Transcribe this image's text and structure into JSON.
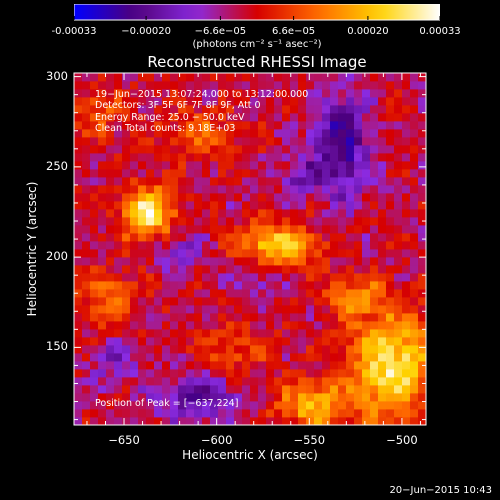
{
  "chart_data": {
    "type": "heatmap",
    "title": "Reconstructed RHESSI Image",
    "xlabel": "Heliocentric X (arcsec)",
    "ylabel": "Heliocentric Y (arcsec)",
    "xlim": [
      -677,
      -487
    ],
    "ylim": [
      107,
      302
    ],
    "xticks": [
      -650,
      -600,
      -550,
      -500
    ],
    "xtick_labels": [
      "−650",
      "−600",
      "−550",
      "−500"
    ],
    "yticks": [
      150,
      200,
      250,
      300
    ],
    "ytick_labels": [
      "150",
      "200",
      "250",
      "300"
    ],
    "colorbar": {
      "range": [
        -0.00033,
        0.00033
      ],
      "ticks": [
        "-0.00033",
        "−0.00020",
        "−6.6e−05",
        "6.6e−05",
        "0.00020",
        "0.00033"
      ],
      "tick_values": [
        -0.00033,
        -0.0002,
        -6.6e-05,
        6.6e-05,
        0.0002,
        0.00033
      ],
      "units_text": "(photons cm⁻² s⁻¹ asec⁻²)",
      "colormap": [
        "#0000ff",
        "#500078",
        "#8a2be2",
        "#d60000",
        "#ff6a00",
        "#ffd200",
        "#ffffff"
      ]
    },
    "info_lines": [
      "19−Jun−2015 13:07:24.000 to 13:12:00.000",
      "Detectors: 3F 5F 6F 7F 8F 9F, Att 0",
      "Energy Range: 25.0 − 50.0 keV",
      "Clean     Total counts: 9.18E+03"
    ],
    "peak_text": "Position of Peak = [−637,224]",
    "peak_position": [
      -637,
      224
    ],
    "sources": [
      {
        "x": -637,
        "y": 224,
        "sx": 10,
        "sy": 10,
        "amp": 0.00033
      },
      {
        "x": -568,
        "y": 207,
        "sx": 16,
        "sy": 8,
        "amp": 0.00026
      },
      {
        "x": -505,
        "y": 140,
        "sx": 16,
        "sy": 20,
        "amp": 0.0003
      },
      {
        "x": -548,
        "y": 118,
        "sx": 14,
        "sy": 9,
        "amp": 0.00022
      },
      {
        "x": -525,
        "y": 178,
        "sx": 12,
        "sy": 8,
        "amp": 0.00016
      },
      {
        "x": -658,
        "y": 176,
        "sx": 12,
        "sy": 12,
        "amp": 0.00013
      },
      {
        "x": -610,
        "y": 268,
        "sx": 14,
        "sy": 10,
        "amp": 0.00012
      },
      {
        "x": -590,
        "y": 150,
        "sx": 14,
        "sy": 10,
        "amp": 0.0001
      },
      {
        "x": -665,
        "y": 280,
        "sx": 10,
        "sy": 10,
        "amp": 0.00011
      },
      {
        "x": -533,
        "y": 262,
        "sx": 10,
        "sy": 20,
        "amp": -0.00022
      },
      {
        "x": -555,
        "y": 245,
        "sx": 8,
        "sy": 8,
        "amp": -0.00012
      },
      {
        "x": -620,
        "y": 205,
        "sx": 10,
        "sy": 10,
        "amp": -0.0001
      },
      {
        "x": -610,
        "y": 122,
        "sx": 16,
        "sy": 10,
        "amp": -0.00016
      },
      {
        "x": -655,
        "y": 145,
        "sx": 10,
        "sy": 10,
        "amp": -9e-05
      },
      {
        "x": -580,
        "y": 190,
        "sx": 8,
        "sy": 8,
        "amp": -0.0001
      }
    ]
  },
  "footer_date": "20−Jun−2015 10:43"
}
